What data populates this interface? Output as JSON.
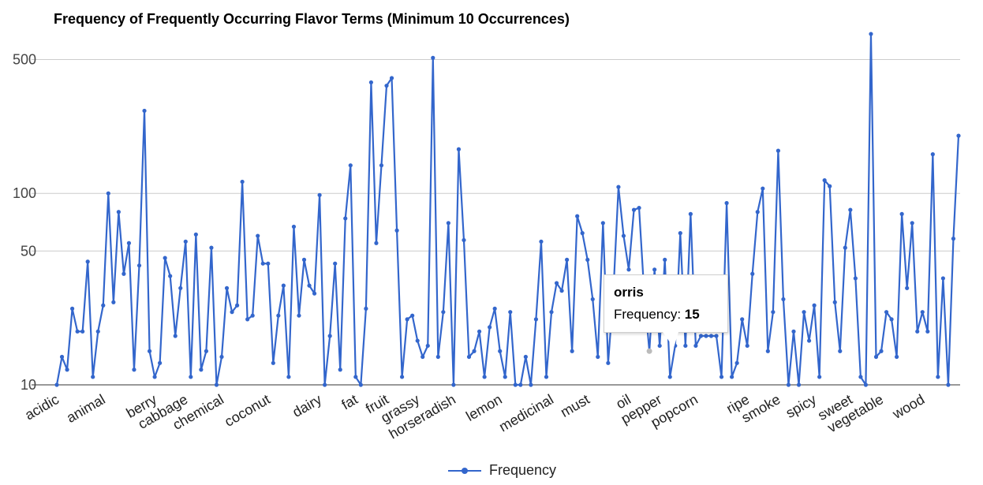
{
  "chart_data": {
    "type": "line",
    "title": "Frequency of Frequently Occurring Flavor Terms (Minimum 10 Occurrences)",
    "xlabel": "",
    "ylabel": "",
    "y_scale": "log",
    "ylim": [
      10,
      700
    ],
    "y_ticks": [
      10,
      50,
      100,
      500
    ],
    "grid": true,
    "legend_position": "bottom",
    "line_color": "#3366cc",
    "x_tick_labels": [
      "acidic",
      "animal",
      "berry",
      "cabbage",
      "chemical",
      "coconut",
      "dairy",
      "fat",
      "fruit",
      "grassy",
      "horseradish",
      "lemon",
      "medicinal",
      "must",
      "oil",
      "pepper",
      "popcorn",
      "ripe",
      "smoke",
      "spicy",
      "sweet",
      "vegetable",
      "wood"
    ],
    "x_tick_indices": [
      0,
      9,
      19,
      25,
      32,
      41,
      51,
      58,
      64,
      70,
      77,
      86,
      96,
      103,
      111,
      117,
      124,
      134,
      140,
      147,
      154,
      160,
      168
    ],
    "series": [
      {
        "name": "Frequency",
        "values": [
          10,
          14,
          12,
          25,
          19,
          19,
          44,
          11,
          19,
          26,
          100,
          27,
          80,
          38,
          55,
          12,
          42,
          270,
          15,
          11,
          13,
          46,
          37,
          18,
          32,
          56,
          11,
          61,
          12,
          15,
          52,
          10,
          14,
          32,
          24,
          26,
          115,
          22,
          23,
          60,
          43,
          43,
          13,
          23,
          33,
          11,
          67,
          23,
          45,
          33,
          30,
          98,
          10,
          18,
          43,
          12,
          74,
          140,
          11,
          10,
          25,
          380,
          55,
          140,
          365,
          400,
          64,
          11,
          22,
          23,
          17,
          14,
          16,
          510,
          14,
          24,
          70,
          10,
          170,
          57,
          14,
          15,
          19,
          11,
          20,
          25,
          15,
          11,
          24,
          10,
          10,
          14,
          10,
          22,
          56,
          11,
          24,
          34,
          31,
          45,
          15,
          76,
          62,
          45,
          28,
          14,
          70,
          13,
          30,
          108,
          60,
          40,
          82,
          84,
          30,
          15,
          40,
          16,
          45,
          11,
          16,
          62,
          16,
          78,
          16,
          18,
          18,
          18,
          18,
          11,
          89,
          11,
          13,
          22,
          16,
          38,
          80,
          106,
          15,
          24,
          167,
          28,
          10,
          19,
          10,
          24,
          17,
          26,
          11,
          117,
          109,
          27,
          15,
          52,
          82,
          36,
          11,
          10,
          680,
          14,
          15,
          24,
          22,
          14,
          78,
          32,
          70,
          19,
          24,
          19,
          160,
          11,
          36,
          10,
          58,
          200
        ]
      }
    ],
    "tooltip": {
      "label": "orris",
      "series_name": "Frequency:",
      "value": "15",
      "point_index": 115
    }
  }
}
